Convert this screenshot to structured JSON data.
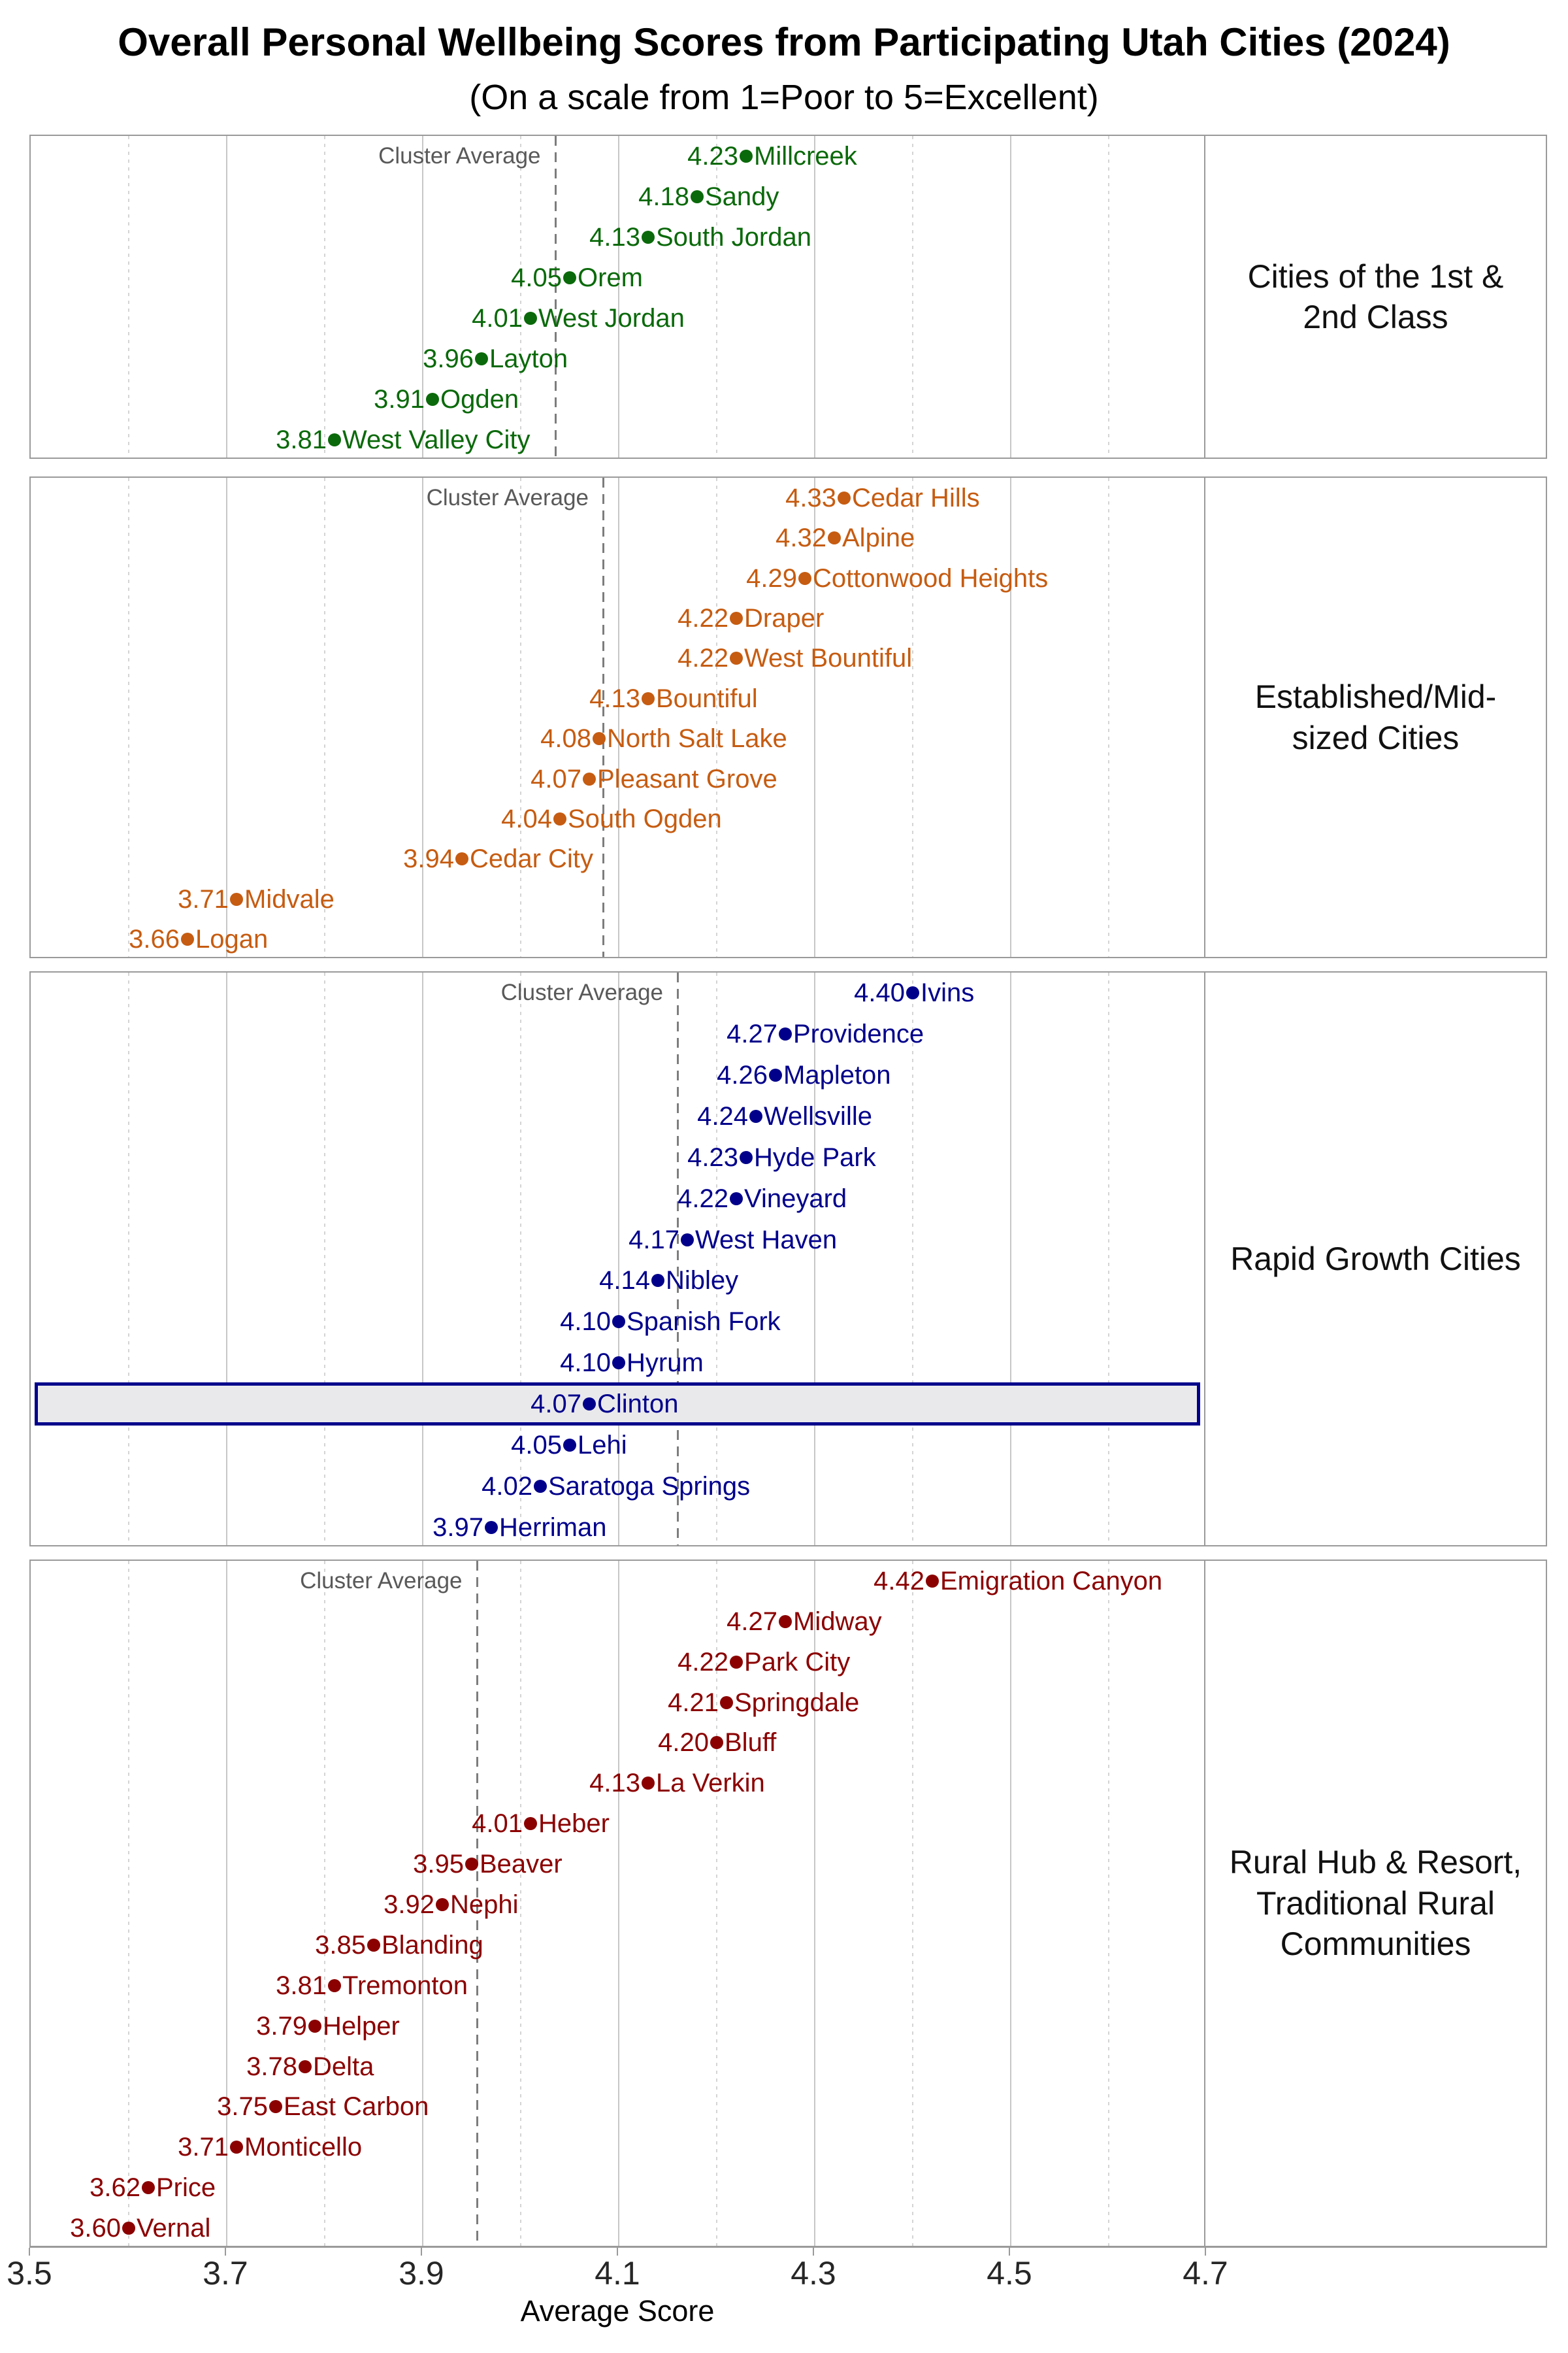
{
  "page": {
    "title": "Overall Personal Wellbeing Scores from Participating Utah Cities (2024)",
    "subtitle": "(On a scale from 1=Poor to 5=Excellent)"
  },
  "annotation": {
    "cluster_average_label": "Cluster Average"
  },
  "x_axis": {
    "label": "Average Score",
    "tick_labels": [
      "3.5",
      "3.7",
      "3.9",
      "4.1",
      "4.3",
      "4.5",
      "4.7"
    ],
    "tick_values": [
      3.5,
      3.7,
      3.9,
      4.1,
      4.3,
      4.5,
      4.7
    ],
    "minor_gridline_values": [
      3.6,
      3.8,
      4.0,
      4.2,
      4.4,
      4.6
    ],
    "min": 3.5,
    "max": 4.7
  },
  "chart_data": {
    "type": "scatter",
    "title": "Overall Personal Wellbeing Scores from Participating Utah Cities (2024)",
    "subtitle": "(On a scale from 1=Poor to 5=Excellent)",
    "xlabel": "Average Score",
    "xlim": [
      3.5,
      4.7
    ],
    "grid": "major solid at 0.2 steps, minor dotted at offset 0.1 steps",
    "legend_position": "right facet strips",
    "value_format": "2 decimals, shown left of each dot; city name shown right of each dot",
    "highlight": {
      "city": "Clinton",
      "fill": "#e9e9ec",
      "border": "#00008b"
    },
    "clusters": [
      {
        "name": "Cities of the 1st & 2nd Class",
        "color": "#0a690a",
        "cluster_average": 4.035,
        "cities": [
          {
            "name": "Millcreek",
            "score": 4.23
          },
          {
            "name": "Sandy",
            "score": 4.18
          },
          {
            "name": "South Jordan",
            "score": 4.13
          },
          {
            "name": "Orem",
            "score": 4.05
          },
          {
            "name": "West Jordan",
            "score": 4.01
          },
          {
            "name": "Layton",
            "score": 3.96
          },
          {
            "name": "Ogden",
            "score": 3.91
          },
          {
            "name": "West Valley City",
            "score": 3.81
          }
        ]
      },
      {
        "name": "Established/Mid-sized Cities",
        "color": "#c65c11",
        "cluster_average": 4.084,
        "cities": [
          {
            "name": "Cedar Hills",
            "score": 4.33
          },
          {
            "name": "Alpine",
            "score": 4.32
          },
          {
            "name": "Cottonwood Heights",
            "score": 4.29
          },
          {
            "name": "Draper",
            "score": 4.22
          },
          {
            "name": "West Bountiful",
            "score": 4.22
          },
          {
            "name": "Bountiful",
            "score": 4.13
          },
          {
            "name": "North Salt Lake",
            "score": 4.08
          },
          {
            "name": "Pleasant Grove",
            "score": 4.07
          },
          {
            "name": "South Ogden",
            "score": 4.04
          },
          {
            "name": "Cedar City",
            "score": 3.94
          },
          {
            "name": "Midvale",
            "score": 3.71
          },
          {
            "name": "Logan",
            "score": 3.66
          }
        ]
      },
      {
        "name": "Rapid Growth Cities",
        "color": "#00008b",
        "cluster_average": 4.16,
        "cities": [
          {
            "name": "Ivins",
            "score": 4.4
          },
          {
            "name": "Providence",
            "score": 4.27
          },
          {
            "name": "Mapleton",
            "score": 4.26
          },
          {
            "name": "Wellsville",
            "score": 4.24
          },
          {
            "name": "Hyde Park",
            "score": 4.23
          },
          {
            "name": "Vineyard",
            "score": 4.22
          },
          {
            "name": "West Haven",
            "score": 4.17
          },
          {
            "name": "Nibley",
            "score": 4.14
          },
          {
            "name": "Spanish Fork",
            "score": 4.1
          },
          {
            "name": "Hyrum",
            "score": 4.1
          },
          {
            "name": "Clinton",
            "score": 4.07
          },
          {
            "name": "Lehi",
            "score": 4.05
          },
          {
            "name": "Saratoga Springs",
            "score": 4.02
          },
          {
            "name": "Herriman",
            "score": 3.97
          }
        ]
      },
      {
        "name": "Rural Hub & Resort, Traditional Rural Communities",
        "color": "#8b0000",
        "cluster_average": 3.955,
        "cities": [
          {
            "name": "Emigration Canyon",
            "score": 4.42
          },
          {
            "name": "Midway",
            "score": 4.27
          },
          {
            "name": "Park City",
            "score": 4.22
          },
          {
            "name": "Springdale",
            "score": 4.21
          },
          {
            "name": "Bluff",
            "score": 4.2
          },
          {
            "name": "La Verkin",
            "score": 4.13
          },
          {
            "name": "Heber",
            "score": 4.01
          },
          {
            "name": "Beaver",
            "score": 3.95
          },
          {
            "name": "Nephi",
            "score": 3.92
          },
          {
            "name": "Blanding",
            "score": 3.85
          },
          {
            "name": "Tremonton",
            "score": 3.81
          },
          {
            "name": "Helper",
            "score": 3.79
          },
          {
            "name": "Delta",
            "score": 3.78
          },
          {
            "name": "East Carbon",
            "score": 3.75
          },
          {
            "name": "Monticello",
            "score": 3.71
          },
          {
            "name": "Price",
            "score": 3.62
          },
          {
            "name": "Vernal",
            "score": 3.6
          }
        ]
      }
    ]
  }
}
